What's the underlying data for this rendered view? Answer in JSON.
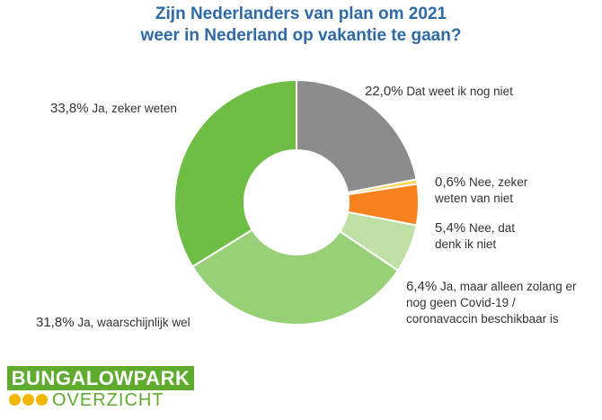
{
  "title_line1": "Zijn Nederlanders van plan om 2021",
  "title_line2": "weer in Nederland op vakantie te gaan?",
  "chart_data": {
    "type": "pie",
    "variant": "donut",
    "start": "top",
    "direction": "clockwise",
    "slices": [
      {
        "pct": "22,0%",
        "label": "Dat weet ik nog niet",
        "value": 22.0,
        "color": "#8c8c8c"
      },
      {
        "pct": "0,6%",
        "label": "Nee, zeker weten van niet",
        "value": 0.6,
        "color": "#ffd34e"
      },
      {
        "pct": "5,4%",
        "label": "Nee, dat denk ik niet",
        "value": 5.4,
        "color": "#f7821e"
      },
      {
        "pct": "6,4%",
        "label": "Ja, maar alleen zolang er nog geen Covid-19 / coronavaccin beschikbaar is",
        "value": 6.4,
        "color": "#bfe0a4"
      },
      {
        "pct": "31,8%",
        "label": "Ja, waarschijnlijk wel",
        "value": 31.8,
        "color": "#97d076"
      },
      {
        "pct": "33,8%",
        "label": "Ja, zeker weten",
        "value": 33.8,
        "color": "#6ebe46"
      }
    ]
  },
  "logo": {
    "top_text": "BUNGALOWPARK",
    "bottom_text": "OVERZICHT",
    "icon": "three-sun-dots-icon",
    "color_green": "#5eab2e",
    "color_yellow": "#f2b705"
  }
}
